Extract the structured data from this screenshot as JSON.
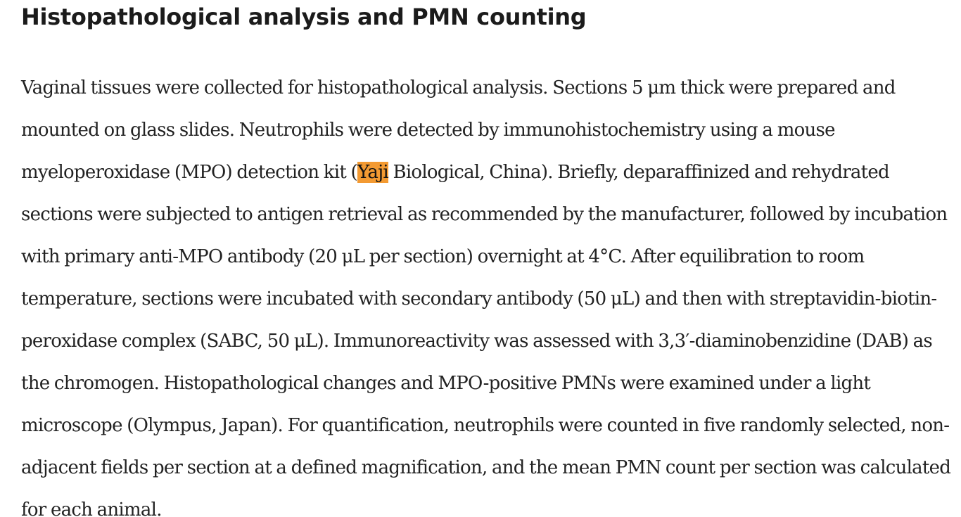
{
  "section": {
    "title": "Histopathological analysis and PMN counting",
    "paragraph": {
      "before_highlight": "Vaginal tissues were collected for histopathological analysis. Sections 5 μm thick were prepared and mounted on glass slides. Neutrophils were detected by immunohistochemistry using a mouse myeloperoxidase (MPO) detection kit (",
      "highlight": "Yaji",
      "after_highlight": " Biological, China). Briefly, deparaffinized and rehydrated sections were subjected to antigen retrieval as recommended by the manufacturer, followed by incubation with primary anti-MPO antibody (20 μL per section) overnight at 4°C. After equilibration to room temperature, sections were incubated with secondary antibody (50 μL) and then with streptavidin-biotin-peroxidase complex (SABC, 50 μL). Immunoreactivity was assessed with 3,3′-diaminobenzidine (DAB) as the chromogen. Histopathological changes and MPO-positive PMNs were examined under a light microscope (Olympus, Japan). For quantification, neutrophils were counted in five randomly selected, non-adjacent fields per section at a defined magnification, and the mean PMN count per section was calculated for each animal."
    }
  },
  "colors": {
    "highlight": "#f39a32",
    "text": "#222222",
    "heading": "#1b1b1b"
  }
}
